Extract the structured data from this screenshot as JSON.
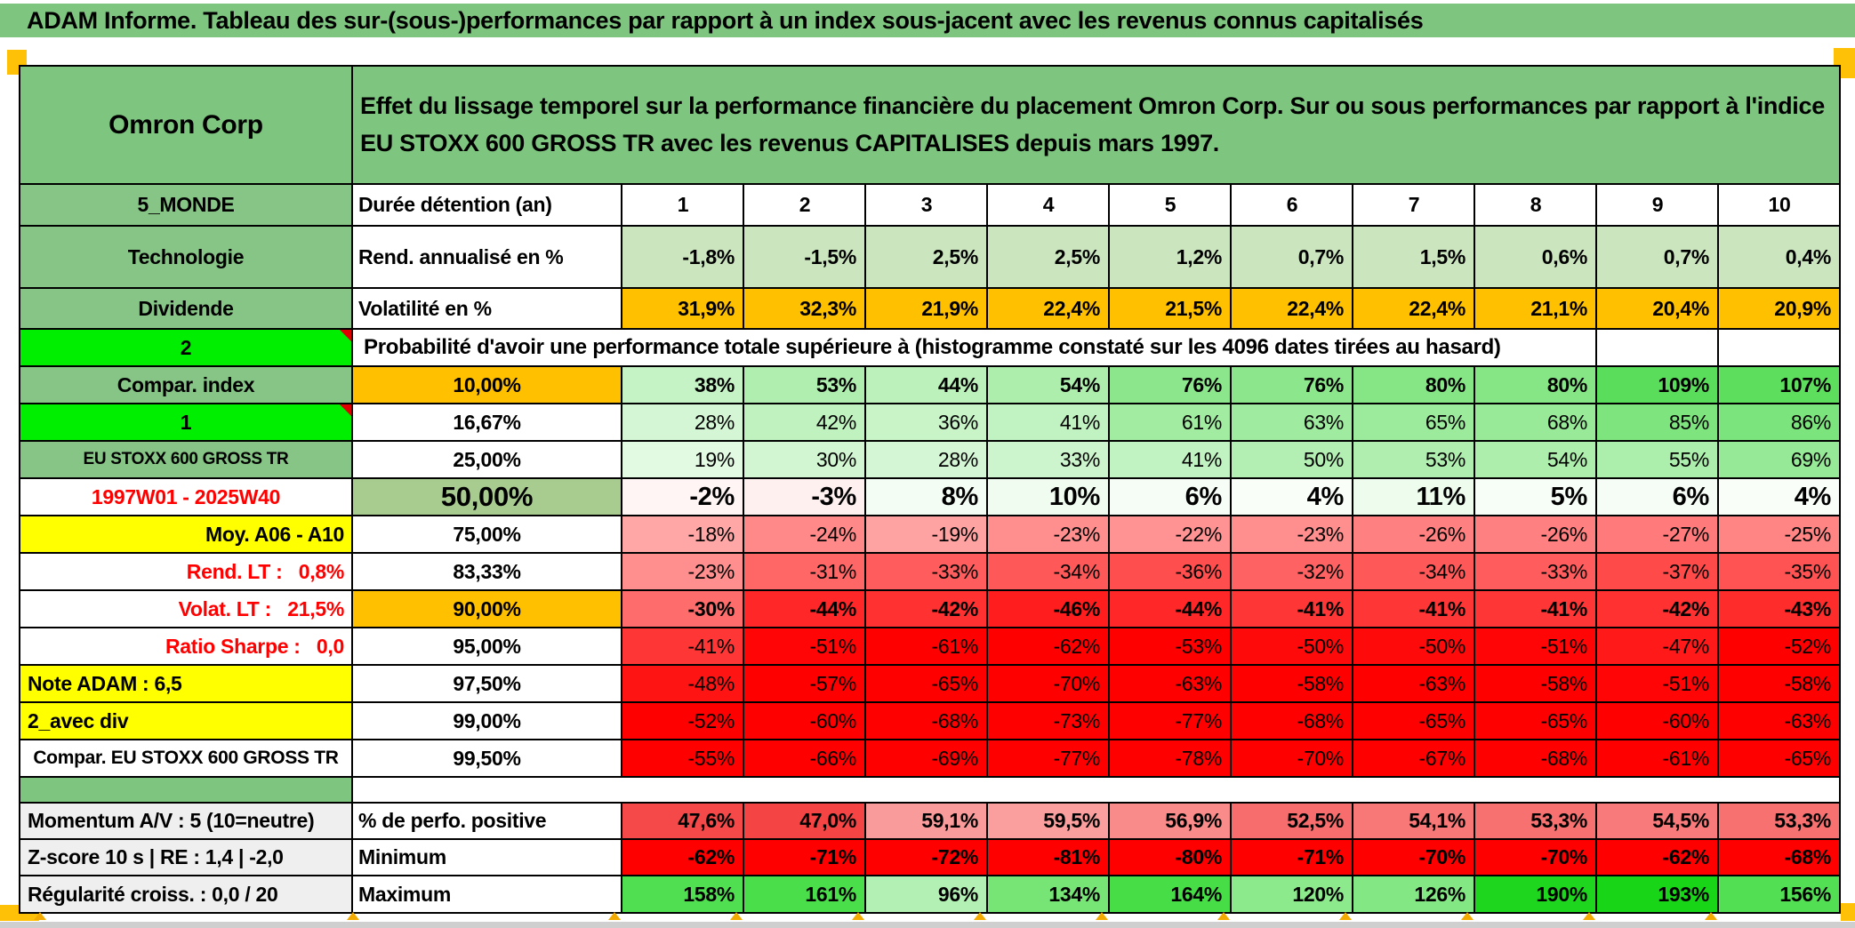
{
  "title": "ADAM Informe. Tableau des sur-(sous-)performances par rapport à un index sous-jacent avec les revenus connus capitalisés",
  "header": {
    "fund_name": "Omron Corp",
    "description": "Effet du lissage temporel sur la performance financière du placement Omron Corp. Sur ou sous performances par rapport à l'indice EU STOXX 600 GROSS TR avec les revenus CAPITALISES depuis mars 1997."
  },
  "colors": {
    "title_green": "#7EC67F",
    "label_green": "#86C586",
    "bright_green": "#00EE00",
    "orange": "#FFC000",
    "yellow": "#FFFF00",
    "red_text": "#FF0000",
    "rend_row_green": "#CBE5BF",
    "gray_label": "#EFEFEF",
    "marker_orange": "#FFC107"
  },
  "table": {
    "rows": [
      {
        "left": {
          "t": "5_MONDE",
          "s": "c-green"
        },
        "label": {
          "t": "Durée détention (an)",
          "s": "la"
        },
        "scale": "none",
        "bold": true,
        "center": true,
        "values": [
          "1",
          "2",
          "3",
          "4",
          "5",
          "6",
          "7",
          "8",
          "9",
          "10"
        ]
      },
      {
        "left": {
          "t": "Technologie",
          "s": "c-green"
        },
        "label": {
          "t": "Rend. annualisé en %",
          "s": "la"
        },
        "scale": "rend",
        "bold": true,
        "values": [
          "-1,8%",
          "-1,5%",
          "2,5%",
          "2,5%",
          "1,2%",
          "0,7%",
          "1,5%",
          "0,6%",
          "0,7%",
          "0,4%"
        ]
      },
      {
        "left": {
          "t": "Dividende",
          "s": "c-green"
        },
        "label": {
          "t": "Volatilité en %",
          "s": "la"
        },
        "scale": "vol",
        "bold": true,
        "values": [
          "31,9%",
          "32,3%",
          "21,9%",
          "22,4%",
          "21,5%",
          "22,4%",
          "22,4%",
          "21,1%",
          "20,4%",
          "20,9%"
        ]
      },
      {
        "left": {
          "t": "2",
          "s": "c-bright",
          "comment": true
        },
        "span": {
          "t": "Probabilité d'avoir une performance totale supérieure à (histogramme constaté sur les 4096 dates tirées au hasard)"
        }
      },
      {
        "left": {
          "t": "Compar. index",
          "s": "c-green"
        },
        "label": {
          "t": "10,00%",
          "s": "ce c-orangebg"
        },
        "scale": "prob",
        "bold": true,
        "values": [
          "38%",
          "53%",
          "44%",
          "54%",
          "76%",
          "76%",
          "80%",
          "80%",
          "109%",
          "107%"
        ]
      },
      {
        "left": {
          "t": "1",
          "s": "c-bright",
          "comment": true
        },
        "label": {
          "t": "16,67%",
          "s": "ce"
        },
        "scale": "prob",
        "values": [
          "28%",
          "42%",
          "36%",
          "41%",
          "61%",
          "63%",
          "65%",
          "68%",
          "85%",
          "86%"
        ]
      },
      {
        "left": {
          "t": "EU STOXX 600 GROSS TR",
          "s": "c-green small"
        },
        "label": {
          "t": "25,00%",
          "s": "ce"
        },
        "scale": "prob",
        "values": [
          "19%",
          "30%",
          "28%",
          "33%",
          "41%",
          "50%",
          "53%",
          "54%",
          "55%",
          "69%"
        ]
      },
      {
        "left": {
          "t": "1997W01 - 2025W40",
          "s": "c-redtext"
        },
        "label": {
          "t": "50,00%",
          "s": "ce c-green50"
        },
        "scale": "prob",
        "bold": true,
        "big": true,
        "values": [
          "-2%",
          "-3%",
          "8%",
          "10%",
          "6%",
          "4%",
          "11%",
          "5%",
          "6%",
          "4%"
        ]
      },
      {
        "left": {
          "t": "Moy. A06 - A10",
          "s": "c-yellow ra"
        },
        "label": {
          "t": "75,00%",
          "s": "ce"
        },
        "scale": "prob",
        "values": [
          "-18%",
          "-24%",
          "-19%",
          "-23%",
          "-22%",
          "-23%",
          "-26%",
          "-26%",
          "-27%",
          "-25%"
        ]
      },
      {
        "left": {
          "t": "Rend. LT :   0,8%",
          "s": "c-redtext ra"
        },
        "label": {
          "t": "83,33%",
          "s": "ce"
        },
        "scale": "prob",
        "values": [
          "-23%",
          "-31%",
          "-33%",
          "-34%",
          "-36%",
          "-32%",
          "-34%",
          "-33%",
          "-37%",
          "-35%"
        ]
      },
      {
        "left": {
          "t": "Volat. LT :   21,5%",
          "s": "c-redtext ra"
        },
        "label": {
          "t": "90,00%",
          "s": "ce c-orangebg"
        },
        "scale": "prob",
        "bold": true,
        "values": [
          "-30%",
          "-44%",
          "-42%",
          "-46%",
          "-44%",
          "-41%",
          "-41%",
          "-41%",
          "-42%",
          "-43%"
        ]
      },
      {
        "left": {
          "t": "Ratio Sharpe :   0,0",
          "s": "c-redtext ra"
        },
        "label": {
          "t": "95,00%",
          "s": "ce"
        },
        "scale": "prob",
        "values": [
          "-41%",
          "-51%",
          "-61%",
          "-62%",
          "-53%",
          "-50%",
          "-50%",
          "-51%",
          "-47%",
          "-52%"
        ]
      },
      {
        "left": {
          "t": "Note ADAM : 6,5",
          "s": "c-yellow la"
        },
        "label": {
          "t": "97,50%",
          "s": "ce"
        },
        "scale": "prob",
        "values": [
          "-48%",
          "-57%",
          "-65%",
          "-70%",
          "-63%",
          "-58%",
          "-63%",
          "-58%",
          "-51%",
          "-58%"
        ]
      },
      {
        "left": {
          "t": "2_avec div",
          "s": "c-yellow la"
        },
        "label": {
          "t": "99,00%",
          "s": "ce"
        },
        "scale": "prob",
        "values": [
          "-52%",
          "-60%",
          "-68%",
          "-73%",
          "-77%",
          "-68%",
          "-65%",
          "-65%",
          "-60%",
          "-63%"
        ]
      },
      {
        "left": {
          "t": "Compar. EU STOXX 600 GROSS TR",
          "s": "c-white c-mid"
        },
        "label": {
          "t": "99,50%",
          "s": "ce"
        },
        "scale": "prob",
        "values": [
          "-55%",
          "-66%",
          "-69%",
          "-77%",
          "-78%",
          "-70%",
          "-67%",
          "-68%",
          "-61%",
          "-65%"
        ]
      },
      {
        "spacer": true
      },
      {
        "left": {
          "t": "Momentum A/V : 5 (10=neutre)",
          "s": "c-gray la"
        },
        "label": {
          "t": "% de perfo. positive",
          "s": "la"
        },
        "scale": "pos",
        "bold": true,
        "values": [
          "47,6%",
          "47,0%",
          "59,1%",
          "59,5%",
          "56,9%",
          "52,5%",
          "54,1%",
          "53,3%",
          "54,5%",
          "53,3%"
        ]
      },
      {
        "left": {
          "t": "Z-score 10 s | RE : 1,4 | -2,0",
          "s": "c-gray la"
        },
        "label": {
          "t": "Minimum",
          "s": "la"
        },
        "scale": "min",
        "bold": true,
        "values": [
          "-62%",
          "-71%",
          "-72%",
          "-81%",
          "-80%",
          "-71%",
          "-70%",
          "-70%",
          "-62%",
          "-68%"
        ]
      },
      {
        "left": {
          "t": "Régularité croiss. : 0,0 / 20",
          "s": "c-gray la"
        },
        "label": {
          "t": "Maximum",
          "s": "la"
        },
        "scale": "max",
        "bold": true,
        "values": [
          "158%",
          "161%",
          "96%",
          "134%",
          "164%",
          "120%",
          "126%",
          "190%",
          "193%",
          "156%"
        ]
      }
    ]
  }
}
